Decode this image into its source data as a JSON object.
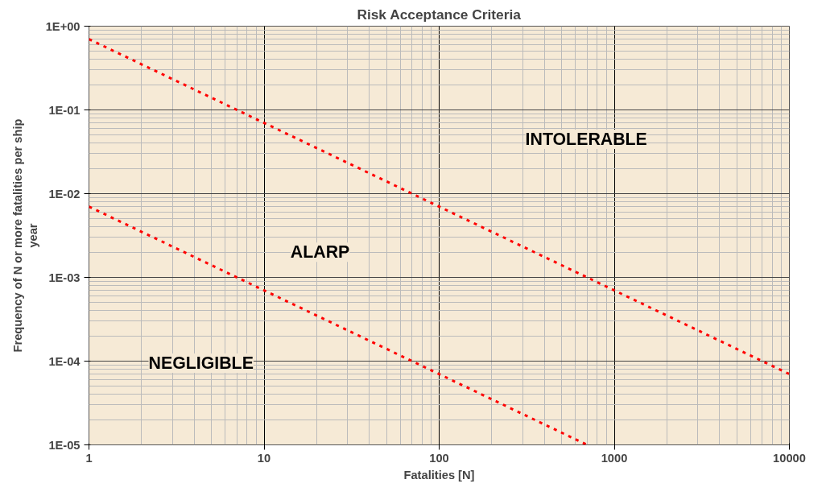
{
  "chart_data": {
    "type": "line",
    "title": "Risk Acceptance Criteria",
    "xlabel": "Fatalities [N]",
    "ylabel": "Frequency of N or more fatalities per ship year",
    "log": "xy",
    "grid": true,
    "line_style": "dashed",
    "marker": "none",
    "xlim": [
      1,
      10000
    ],
    "xticks": [
      1,
      10,
      100,
      1000,
      10000
    ],
    "ylim": [
      1e-05,
      1
    ],
    "yticks": [
      {
        "value": 1e-05,
        "label": "1E-05"
      },
      {
        "value": 0.0001,
        "label": "1E-04"
      },
      {
        "value": 0.001,
        "label": "1E-03"
      },
      {
        "value": 0.01,
        "label": "1E-02"
      },
      {
        "value": 0.1,
        "label": "1E-01"
      },
      {
        "value": 1,
        "label": "1E+00"
      }
    ],
    "series": [
      {
        "color": "#ff0000",
        "x": [
          1,
          10,
          100,
          1000,
          10000
        ],
        "values": [
          0.7,
          0.07,
          0.007,
          0.0007,
          7e-05
        ]
      },
      {
        "color": "#ff0000",
        "x": [
          1,
          10,
          100,
          700
        ],
        "values": [
          0.007,
          0.0007,
          7e-05,
          1e-05
        ]
      }
    ],
    "annotations": [
      "INTOLERABLE",
      "ALARP",
      "NEGLIGIBLE"
    ]
  }
}
